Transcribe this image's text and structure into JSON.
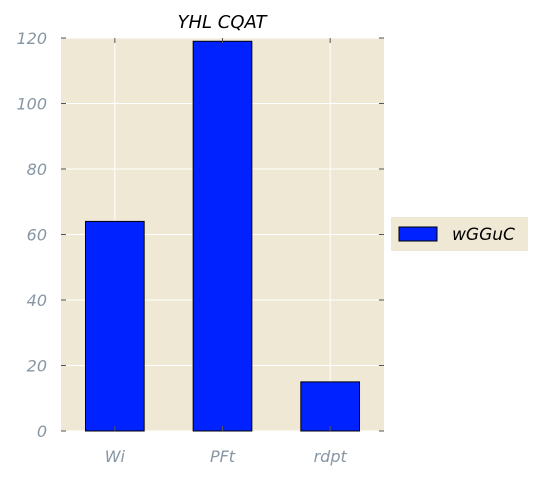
{
  "chart_data": {
    "type": "bar",
    "title": "YHL CQAT",
    "xlabel": "",
    "ylabel": "",
    "categories": [
      "Wi",
      "PFt",
      "rdpt"
    ],
    "series": [
      {
        "name": "wGGuC",
        "values": [
          64,
          119,
          15
        ],
        "color": "#0022ff"
      }
    ],
    "ylim": [
      0,
      120
    ],
    "yticks": [
      0,
      20,
      40,
      60,
      80,
      100,
      120
    ],
    "grid": true,
    "legend_position": "right",
    "colors": {
      "plot_background": "#efe8d4",
      "grid": "#ffffff",
      "tick_label": "#8796a3"
    }
  }
}
